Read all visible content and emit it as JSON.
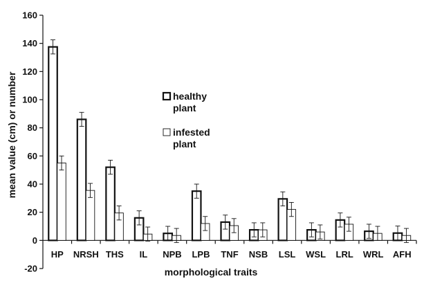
{
  "chart_data": {
    "type": "bar",
    "title": "",
    "xlabel": "morphological traits",
    "ylabel": "mean value (cm)  or  number",
    "ylim": [
      -20,
      160
    ],
    "yticks": [
      160,
      140,
      120,
      100,
      80,
      60,
      40,
      20,
      0,
      -20
    ],
    "ytick_labels": [
      "160",
      "140",
      "120",
      "100",
      "80",
      "60",
      "40",
      "20",
      "0",
      "-20"
    ],
    "grid": false,
    "legend_position": "center-left, inside plot",
    "categories": [
      "HP",
      "NRSH",
      "THS",
      "IL",
      "NPB",
      "LPB",
      "TNF",
      "NSB",
      "LSL",
      "WSL",
      "LRL",
      "WRL",
      "AFH"
    ],
    "series": [
      {
        "name": "healthy plant",
        "legend_lines": [
          "healthy",
          "plant"
        ],
        "style": "thick outline",
        "values": [
          137.5,
          86,
          52,
          16,
          5,
          35,
          13,
          7.5,
          29.5,
          7.5,
          14.5,
          6.5,
          5.2
        ],
        "errors": [
          5,
          5,
          5,
          5,
          5,
          5,
          5,
          5,
          5,
          5,
          5,
          5,
          5
        ]
      },
      {
        "name": "infested plant",
        "legend_lines": [
          "infested",
          "plant"
        ],
        "style": "thin outline",
        "values": [
          55,
          35.5,
          19.5,
          4.5,
          3.5,
          12,
          10.5,
          7.5,
          22,
          6,
          11.5,
          5,
          3.5
        ],
        "errors": [
          5,
          5,
          5,
          5,
          5,
          5,
          5,
          5,
          5,
          5,
          5,
          5,
          5
        ]
      }
    ]
  }
}
